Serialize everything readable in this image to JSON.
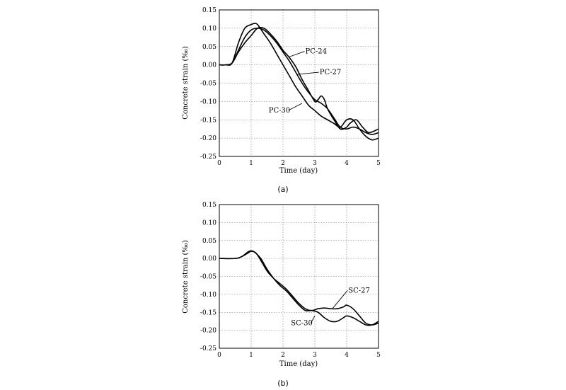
{
  "chart_data": [
    {
      "id": "a",
      "type": "line",
      "caption": "(a)",
      "xlabel": "Time (day)",
      "ylabel": "Concrete strain (‰)",
      "xlim": [
        0,
        5
      ],
      "ylim": [
        -0.25,
        0.15
      ],
      "xticks": [
        "0",
        "1",
        "2",
        "3",
        "4",
        "5"
      ],
      "yticks": [
        "0.15",
        "0.10",
        "0.05",
        "0.00",
        "-0.05",
        "-0.10",
        "-0.15",
        "-0.20",
        "-0.25"
      ],
      "grid": true,
      "series": [
        {
          "name": "PC-24",
          "points": [
            [
              0,
              0
            ],
            [
              0.2,
              0
            ],
            [
              0.4,
              0.005
            ],
            [
              0.6,
              0.04
            ],
            [
              0.8,
              0.075
            ],
            [
              1.0,
              0.095
            ],
            [
              1.2,
              0.1
            ],
            [
              1.4,
              0.095
            ],
            [
              1.6,
              0.08
            ],
            [
              1.8,
              0.06
            ],
            [
              2.0,
              0.035
            ],
            [
              2.2,
              0.01
            ],
            [
              2.4,
              -0.02
            ],
            [
              2.6,
              -0.05
            ],
            [
              2.8,
              -0.075
            ],
            [
              3.0,
              -0.095
            ],
            [
              3.2,
              -0.105
            ],
            [
              3.4,
              -0.12
            ],
            [
              3.6,
              -0.145
            ],
            [
              3.8,
              -0.17
            ],
            [
              4.0,
              -0.175
            ],
            [
              4.2,
              -0.17
            ],
            [
              4.4,
              -0.175
            ],
            [
              4.6,
              -0.185
            ],
            [
              4.8,
              -0.19
            ],
            [
              5.0,
              -0.185
            ]
          ]
        },
        {
          "name": "PC-27",
          "points": [
            [
              0,
              0
            ],
            [
              0.2,
              0
            ],
            [
              0.4,
              0.005
            ],
            [
              0.6,
              0.035
            ],
            [
              0.8,
              0.06
            ],
            [
              1.0,
              0.08
            ],
            [
              1.2,
              0.1
            ],
            [
              1.4,
              0.1
            ],
            [
              1.6,
              0.085
            ],
            [
              1.8,
              0.065
            ],
            [
              2.0,
              0.04
            ],
            [
              2.2,
              0.02
            ],
            [
              2.4,
              -0.005
            ],
            [
              2.6,
              -0.04
            ],
            [
              2.8,
              -0.07
            ],
            [
              3.0,
              -0.1
            ],
            [
              3.1,
              -0.095
            ],
            [
              3.2,
              -0.085
            ],
            [
              3.3,
              -0.095
            ],
            [
              3.4,
              -0.12
            ],
            [
              3.6,
              -0.15
            ],
            [
              3.8,
              -0.175
            ],
            [
              4.0,
              -0.17
            ],
            [
              4.1,
              -0.16
            ],
            [
              4.3,
              -0.15
            ],
            [
              4.5,
              -0.17
            ],
            [
              4.7,
              -0.185
            ],
            [
              5.0,
              -0.175
            ]
          ]
        },
        {
          "name": "PC-30",
          "points": [
            [
              0,
              0
            ],
            [
              0.2,
              0
            ],
            [
              0.4,
              0.005
            ],
            [
              0.6,
              0.06
            ],
            [
              0.8,
              0.1
            ],
            [
              1.0,
              0.11
            ],
            [
              1.1,
              0.113
            ],
            [
              1.2,
              0.11
            ],
            [
              1.4,
              0.085
            ],
            [
              1.6,
              0.06
            ],
            [
              1.8,
              0.03
            ],
            [
              2.0,
              0.0
            ],
            [
              2.2,
              -0.03
            ],
            [
              2.4,
              -0.06
            ],
            [
              2.6,
              -0.085
            ],
            [
              2.8,
              -0.11
            ],
            [
              3.0,
              -0.125
            ],
            [
              3.2,
              -0.14
            ],
            [
              3.4,
              -0.15
            ],
            [
              3.6,
              -0.16
            ],
            [
              3.8,
              -0.17
            ],
            [
              4.0,
              -0.15
            ],
            [
              4.2,
              -0.15
            ],
            [
              4.4,
              -0.175
            ],
            [
              4.6,
              -0.195
            ],
            [
              4.8,
              -0.205
            ],
            [
              5.0,
              -0.2
            ]
          ]
        }
      ],
      "annotations": [
        {
          "text": "PC-24",
          "series": "PC-24",
          "label_at": [
            2.7,
            0.031
          ],
          "point_at": [
            2.2,
            0.022
          ]
        },
        {
          "text": "PC-27",
          "series": "PC-27",
          "label_at": [
            3.15,
            -0.026
          ],
          "point_at": [
            2.45,
            -0.026
          ]
        },
        {
          "text": "PC-30",
          "series": "PC-30",
          "label_at": [
            1.55,
            -0.13
          ],
          "point_at": [
            2.6,
            -0.105
          ]
        }
      ]
    },
    {
      "id": "b",
      "type": "line",
      "caption": "(b)",
      "xlabel": "Time (day)",
      "ylabel": "Concrete strain (‰)",
      "xlim": [
        0,
        5
      ],
      "ylim": [
        -0.25,
        0.15
      ],
      "xticks": [
        "0",
        "1",
        "2",
        "3",
        "4",
        "5"
      ],
      "yticks": [
        "0.15",
        "0.10",
        "0.05",
        "0.00",
        "-0.05",
        "-0.10",
        "-0.15",
        "-0.20",
        "-0.25"
      ],
      "grid": true,
      "series": [
        {
          "name": "SC-27",
          "points": [
            [
              0,
              0
            ],
            [
              0.5,
              0
            ],
            [
              0.7,
              0.005
            ],
            [
              0.9,
              0.015
            ],
            [
              1.0,
              0.02
            ],
            [
              1.15,
              0.015
            ],
            [
              1.3,
              -0.005
            ],
            [
              1.5,
              -0.035
            ],
            [
              1.7,
              -0.055
            ],
            [
              1.9,
              -0.07
            ],
            [
              2.1,
              -0.085
            ],
            [
              2.3,
              -0.105
            ],
            [
              2.5,
              -0.125
            ],
            [
              2.7,
              -0.14
            ],
            [
              2.9,
              -0.145
            ],
            [
              3.1,
              -0.14
            ],
            [
              3.3,
              -0.138
            ],
            [
              3.5,
              -0.14
            ],
            [
              3.7,
              -0.14
            ],
            [
              3.9,
              -0.135
            ],
            [
              4.0,
              -0.13
            ],
            [
              4.2,
              -0.14
            ],
            [
              4.4,
              -0.16
            ],
            [
              4.6,
              -0.18
            ],
            [
              4.8,
              -0.185
            ],
            [
              5.0,
              -0.18
            ]
          ]
        },
        {
          "name": "SC-30",
          "points": [
            [
              0,
              0
            ],
            [
              0.5,
              0
            ],
            [
              0.7,
              0.005
            ],
            [
              0.9,
              0.018
            ],
            [
              1.0,
              0.021
            ],
            [
              1.1,
              0.018
            ],
            [
              1.3,
              0.0
            ],
            [
              1.5,
              -0.03
            ],
            [
              1.7,
              -0.055
            ],
            [
              1.9,
              -0.075
            ],
            [
              2.1,
              -0.09
            ],
            [
              2.3,
              -0.11
            ],
            [
              2.5,
              -0.13
            ],
            [
              2.7,
              -0.145
            ],
            [
              2.9,
              -0.145
            ],
            [
              3.1,
              -0.15
            ],
            [
              3.3,
              -0.165
            ],
            [
              3.5,
              -0.175
            ],
            [
              3.7,
              -0.175
            ],
            [
              3.9,
              -0.165
            ],
            [
              4.0,
              -0.16
            ],
            [
              4.2,
              -0.165
            ],
            [
              4.4,
              -0.175
            ],
            [
              4.6,
              -0.185
            ],
            [
              4.8,
              -0.185
            ],
            [
              5.0,
              -0.175
            ]
          ]
        }
      ],
      "annotations": [
        {
          "text": "SC-27",
          "series": "SC-27",
          "label_at": [
            4.05,
            -0.095
          ],
          "point_at": [
            3.55,
            -0.14
          ]
        },
        {
          "text": "SC-30",
          "series": "SC-30",
          "label_at": [
            2.25,
            -0.186
          ],
          "point_at": [
            3.0,
            -0.16
          ]
        }
      ]
    }
  ]
}
